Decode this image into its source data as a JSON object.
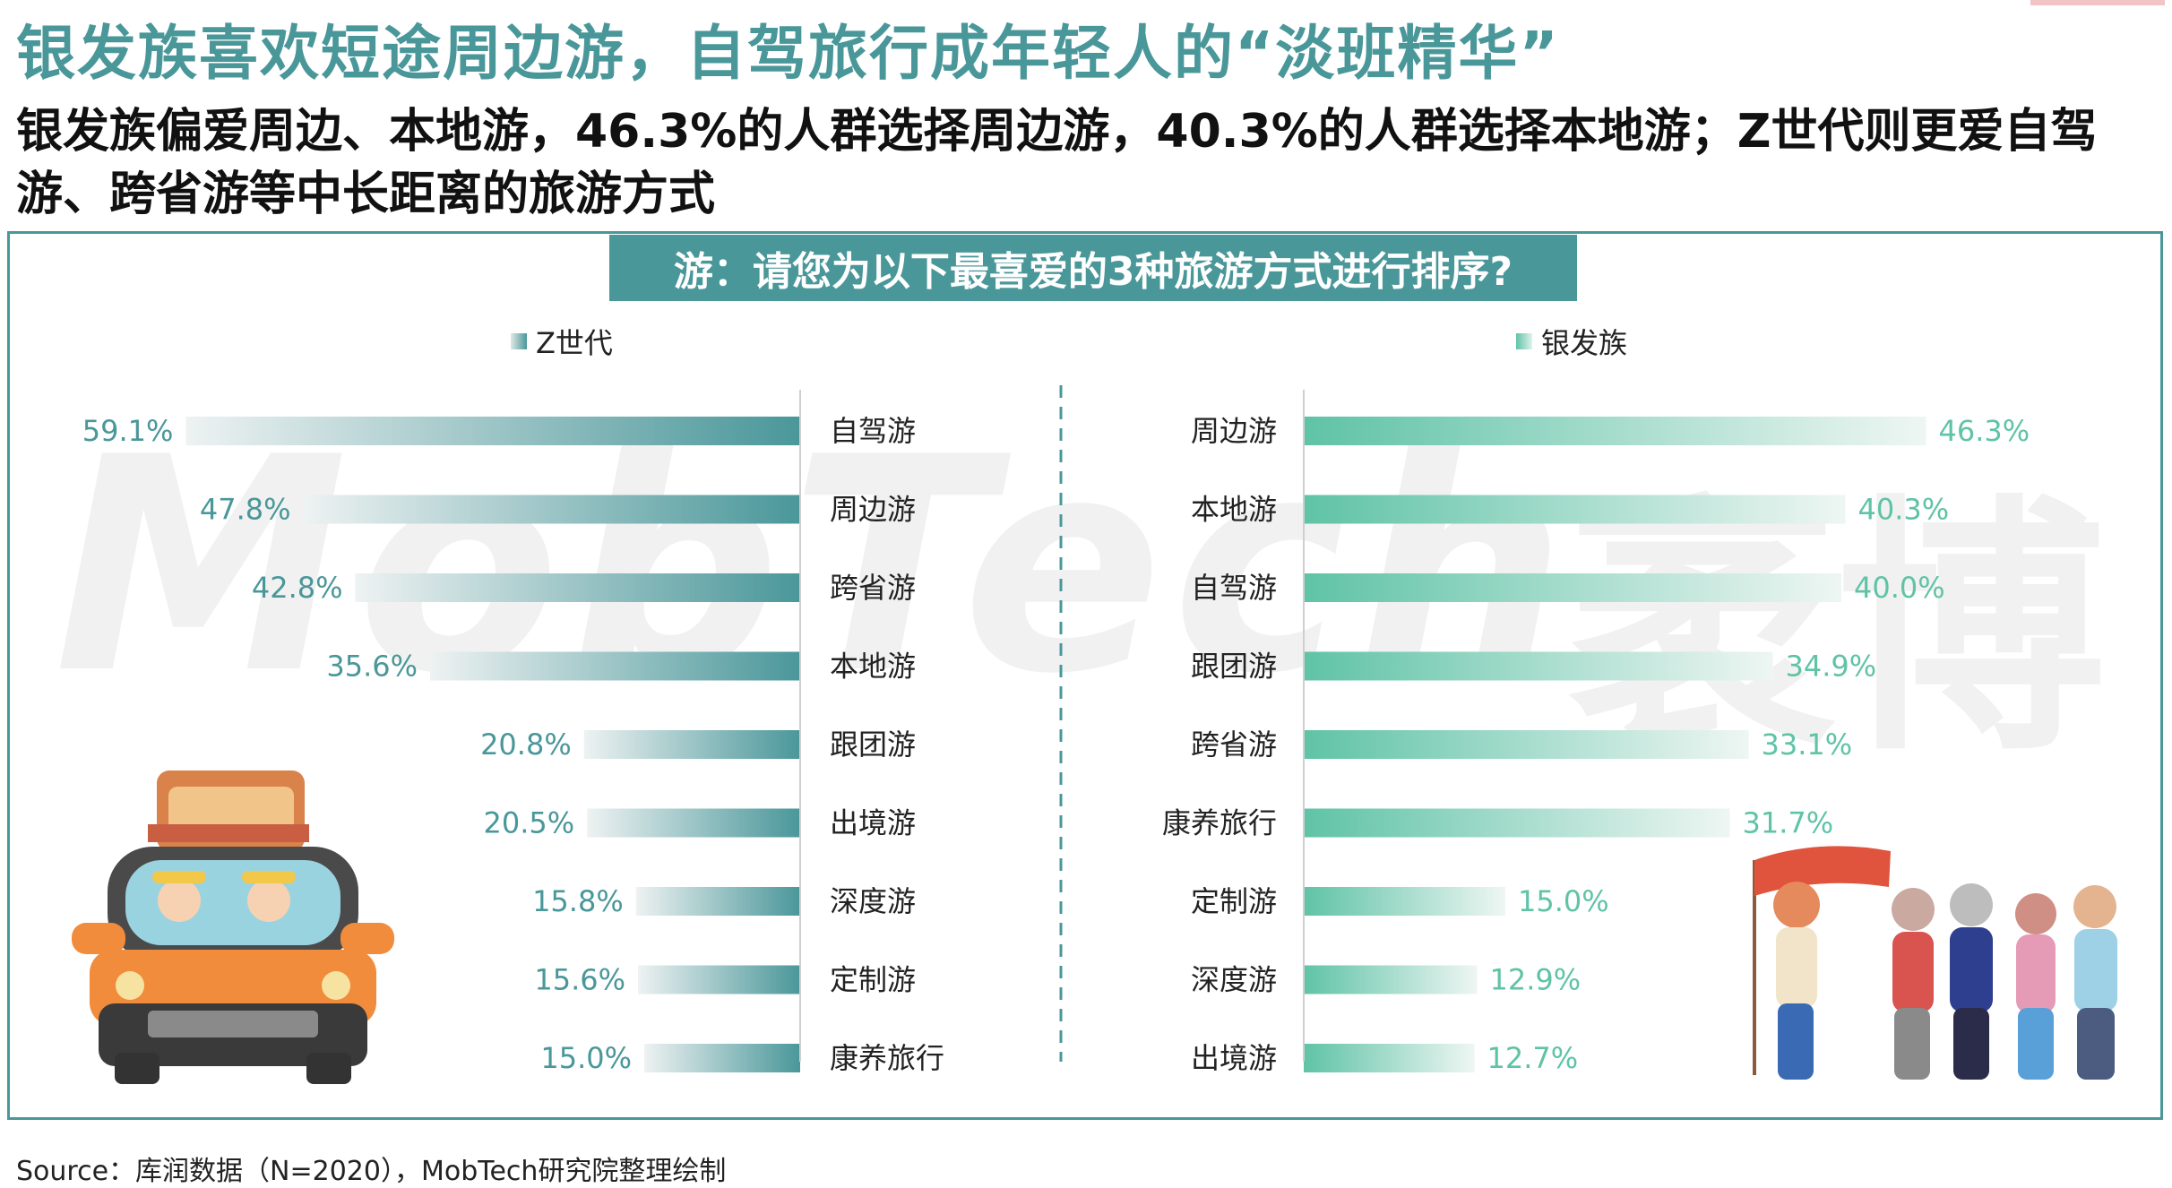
{
  "title": "银发族喜欢短途周边游，自驾旅行成年轻人的“淡班精华”",
  "subtitle": "银发族偏爱周边、本地游，46.3%的人群选择周边游，40.3%的人群选择本地游；Z世代则更爱自驾游、跨省游等中长距离的旅游方式",
  "question": "游：请您为以下最喜爱的3种旅游方式进行排序?",
  "watermark": "MobTech",
  "watermark2": "袤博",
  "source": "Source：库润数据（N=2020），MobTech研究院整理绘制",
  "colors": {
    "accent": "#4a979a",
    "genz_bar": "#4a979a",
    "silver_bar": "#5fc3a6",
    "genz_label": "#4a979a",
    "silver_label": "#5fc3a6"
  },
  "chart_data": [
    {
      "type": "bar",
      "orientation": "horizontal",
      "series_name": "Z世代",
      "categories": [
        "自驾游",
        "周边游",
        "跨省游",
        "本地游",
        "跟团游",
        "出境游",
        "深度游",
        "定制游",
        "康养旅行"
      ],
      "values": [
        59.1,
        47.8,
        42.8,
        35.6,
        20.8,
        20.5,
        15.8,
        15.6,
        15.0
      ],
      "value_labels": [
        "59.1%",
        "47.8%",
        "42.8%",
        "35.6%",
        "20.8%",
        "20.5%",
        "15.8%",
        "15.6%",
        "15.0%"
      ],
      "direction": "right-to-left"
    },
    {
      "type": "bar",
      "orientation": "horizontal",
      "series_name": "银发族",
      "categories": [
        "周边游",
        "本地游",
        "自驾游",
        "跟团游",
        "跨省游",
        "康养旅行",
        "定制游",
        "深度游",
        "出境游"
      ],
      "values": [
        46.3,
        40.3,
        40.0,
        34.9,
        33.1,
        31.7,
        15.0,
        12.9,
        12.7
      ],
      "value_labels": [
        "46.3%",
        "40.3%",
        "40.0%",
        "34.9%",
        "33.1%",
        "31.7%",
        "15.0%",
        "12.9%",
        "12.7%"
      ],
      "direction": "left-to-right"
    }
  ]
}
